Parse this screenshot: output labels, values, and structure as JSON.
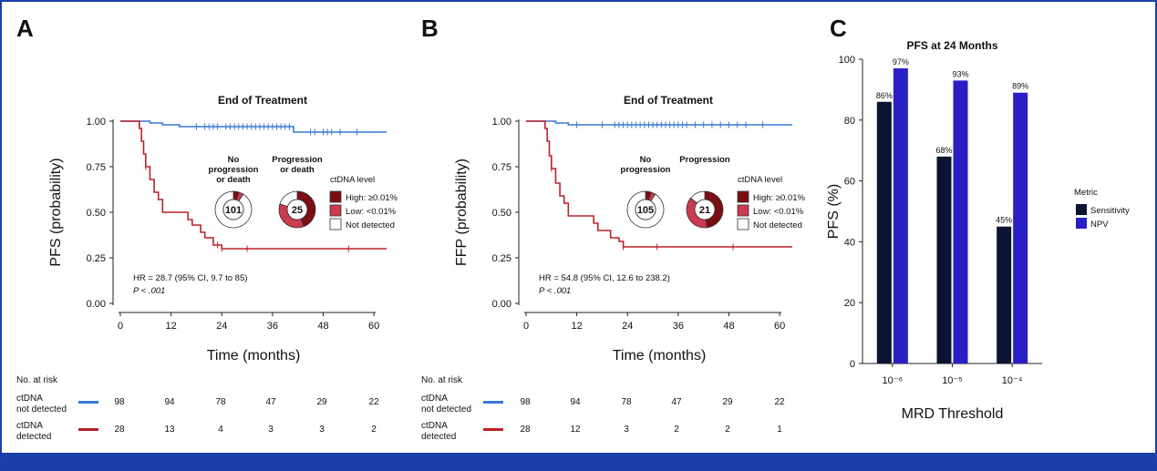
{
  "colors": {
    "blue": "#3a78d6",
    "red": "#b8232a",
    "darkred": "#7a0e13",
    "midred": "#cc3a4f",
    "navy": "#0b1533",
    "purple": "#2a1fc4",
    "frame": "#1a3fa8"
  },
  "panels": {
    "A": {
      "letter": "A"
    },
    "B": {
      "letter": "B"
    },
    "C": {
      "letter": "C"
    }
  },
  "chart_data": [
    {
      "id": "A",
      "type": "line",
      "title": "End of Treatment",
      "xlabel": "Time (months)",
      "ylabel": "PFS (probability)",
      "xlim": [
        0,
        63
      ],
      "ylim": [
        0,
        1.0
      ],
      "xticks": [
        "0",
        "12",
        "24",
        "36",
        "48",
        "60"
      ],
      "yticks": [
        "0.00",
        "0.25",
        "0.50",
        "0.75",
        "1.00"
      ],
      "series": [
        {
          "name": "ctDNA not detected",
          "color": "blue",
          "x": [
            0,
            6,
            7,
            9,
            10,
            12,
            14,
            18,
            41,
            63
          ],
          "y": [
            1.0,
            1.0,
            0.99,
            0.99,
            0.98,
            0.98,
            0.97,
            0.97,
            0.94,
            0.94
          ]
        },
        {
          "name": "ctDNA detected",
          "color": "red",
          "x": [
            0,
            4,
            4.5,
            5,
            5.5,
            6,
            7,
            8,
            9,
            10,
            14,
            16,
            17,
            19,
            20,
            21,
            22,
            23,
            24,
            63
          ],
          "y": [
            1.0,
            1.0,
            0.96,
            0.89,
            0.82,
            0.75,
            0.68,
            0.61,
            0.57,
            0.5,
            0.5,
            0.46,
            0.43,
            0.39,
            0.36,
            0.36,
            0.32,
            0.32,
            0.3,
            0.3
          ]
        }
      ],
      "annotation": {
        "hr": "HR = 28.7 (95% CI, 9.7 to 85)",
        "p": "P < .001"
      },
      "donuts": [
        {
          "label_lines": [
            "No",
            "progression",
            "or death"
          ],
          "center": "101",
          "fractions": [
            0.05,
            0.04,
            0.91
          ]
        },
        {
          "label_lines": [
            "Progression",
            "or death"
          ],
          "center": "25",
          "fractions": [
            0.44,
            0.36,
            0.2
          ]
        }
      ],
      "legend": {
        "title": "ctDNA level",
        "items": [
          "High: ≥0.01%",
          "Low: <0.01%",
          "Not detected"
        ]
      },
      "risk": {
        "header": "No. at risk",
        "rows": [
          {
            "label_lines": [
              "ctDNA",
              "not detected"
            ],
            "color": "blue",
            "values": [
              "98",
              "94",
              "78",
              "47",
              "29",
              "22"
            ]
          },
          {
            "label_lines": [
              "ctDNA",
              "detected"
            ],
            "color": "red",
            "values": [
              "28",
              "13",
              "4",
              "3",
              "3",
              "2"
            ]
          }
        ]
      }
    },
    {
      "id": "B",
      "type": "line",
      "title": "End of Treatment",
      "xlabel": "Time (months)",
      "ylabel": "FFP (probability)",
      "xlim": [
        0,
        63
      ],
      "ylim": [
        0,
        1.0
      ],
      "xticks": [
        "0",
        "12",
        "24",
        "36",
        "48",
        "60"
      ],
      "yticks": [
        "0.00",
        "0.25",
        "0.50",
        "0.75",
        "1.00"
      ],
      "series": [
        {
          "name": "ctDNA not detected",
          "color": "blue",
          "x": [
            0,
            6,
            7,
            9,
            10,
            63
          ],
          "y": [
            1.0,
            1.0,
            0.99,
            0.99,
            0.98,
            0.98
          ]
        },
        {
          "name": "ctDNA detected",
          "color": "red",
          "x": [
            0,
            4,
            4.5,
            5,
            5.5,
            6,
            7,
            8,
            9,
            10,
            14,
            16,
            17,
            20,
            22,
            23,
            63
          ],
          "y": [
            1.0,
            1.0,
            0.96,
            0.89,
            0.81,
            0.74,
            0.66,
            0.59,
            0.55,
            0.48,
            0.48,
            0.44,
            0.4,
            0.36,
            0.34,
            0.31,
            0.31
          ]
        }
      ],
      "annotation": {
        "hr": "HR = 54.8 (95% CI, 12.6 to 238.2)",
        "p": "P < .001"
      },
      "donuts": [
        {
          "label_lines": [
            "No",
            "progression"
          ],
          "center": "105",
          "fractions": [
            0.05,
            0.04,
            0.91
          ]
        },
        {
          "label_lines": [
            "Progression"
          ],
          "center": "21",
          "fractions": [
            0.48,
            0.38,
            0.14
          ]
        }
      ],
      "legend": {
        "title": "ctDNA level",
        "items": [
          "High: ≥0.01%",
          "Low: <0.01%",
          "Not detected"
        ]
      },
      "risk": {
        "header": "No. at risk",
        "rows": [
          {
            "label_lines": [
              "ctDNA",
              "not detected"
            ],
            "color": "blue",
            "values": [
              "98",
              "94",
              "78",
              "47",
              "29",
              "22"
            ]
          },
          {
            "label_lines": [
              "ctDNA",
              "detected"
            ],
            "color": "red",
            "values": [
              "28",
              "12",
              "3",
              "2",
              "2",
              "1"
            ]
          }
        ]
      }
    },
    {
      "id": "C",
      "type": "bar",
      "title": "PFS at 24 Months",
      "xlabel": "MRD Threshold",
      "ylabel": "PFS (%)",
      "ylim": [
        0,
        100
      ],
      "yticks": [
        "0",
        "20",
        "40",
        "60",
        "80",
        "100"
      ],
      "categories": [
        "10⁻⁶",
        "10⁻⁵",
        "10⁻⁴"
      ],
      "series": [
        {
          "name": "Sensitivity",
          "color": "navy",
          "values": [
            86,
            68,
            45
          ],
          "labels": [
            "86%",
            "68%",
            "45%"
          ]
        },
        {
          "name": "NPV",
          "color": "purple",
          "values": [
            97,
            93,
            89
          ],
          "labels": [
            "97%",
            "93%",
            "89%"
          ]
        }
      ],
      "legend_title": "Metric"
    }
  ]
}
